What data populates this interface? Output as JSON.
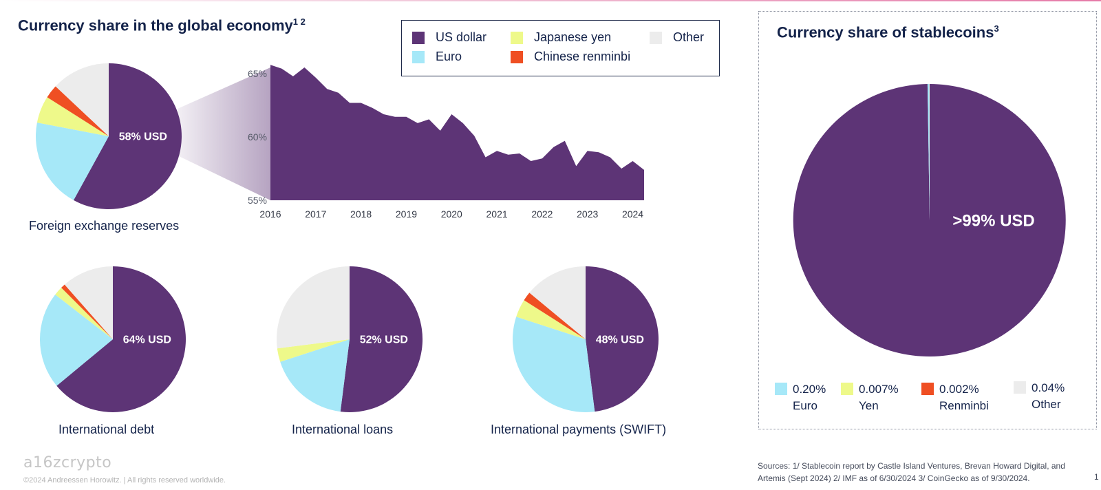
{
  "colors": {
    "usd": "#5d3476",
    "euro": "#a6e8f8",
    "yen": "#eef98a",
    "renminbi": "#ef4f23",
    "other": "#ececec"
  },
  "header": {
    "title": "Currency share in the global economy",
    "title_sup": "1 2"
  },
  "legend": {
    "items": [
      {
        "label": "US dollar",
        "color": "#5d3476"
      },
      {
        "label": "Japanese yen",
        "color": "#eef98a"
      },
      {
        "label": "Other",
        "color": "#ececec"
      },
      {
        "label": "Euro",
        "color": "#a6e8f8"
      },
      {
        "label": "Chinese renminbi",
        "color": "#ef4f23"
      }
    ]
  },
  "chart_data": [
    {
      "type": "pie",
      "title": "Foreign exchange reserves",
      "center_label": "58% USD",
      "slices": [
        {
          "name": "US dollar",
          "value": 58
        },
        {
          "name": "Euro",
          "value": 20
        },
        {
          "name": "Japanese yen",
          "value": 6
        },
        {
          "name": "Chinese renminbi",
          "value": 3
        },
        {
          "name": "Other",
          "value": 13
        }
      ]
    },
    {
      "type": "area",
      "ylim": [
        55,
        65.5
      ],
      "yticks": [
        "55%",
        "60%",
        "65%"
      ],
      "ytick_values": [
        55,
        60,
        65
      ],
      "xticks": [
        "2016",
        "2017",
        "2018",
        "2019",
        "2020",
        "2021",
        "2022",
        "2023",
        "2024"
      ],
      "xtick_values": [
        2016,
        2017,
        2018,
        2019,
        2020,
        2021,
        2022,
        2023,
        2024
      ],
      "x": [
        2016.0,
        2016.25,
        2016.5,
        2016.75,
        2017.0,
        2017.25,
        2017.5,
        2017.75,
        2018.0,
        2018.25,
        2018.5,
        2018.75,
        2019.0,
        2019.25,
        2019.5,
        2019.75,
        2020.0,
        2020.25,
        2020.5,
        2020.75,
        2021.0,
        2021.25,
        2021.5,
        2021.75,
        2022.0,
        2022.25,
        2022.5,
        2022.75,
        2023.0,
        2023.25,
        2023.5,
        2023.75,
        2024.0,
        2024.25
      ],
      "y": [
        65.7,
        65.4,
        64.8,
        65.5,
        64.7,
        63.8,
        63.5,
        62.7,
        62.7,
        62.3,
        61.8,
        61.6,
        61.6,
        61.1,
        61.4,
        60.5,
        61.8,
        61.1,
        60.1,
        58.4,
        58.9,
        58.6,
        58.7,
        58.1,
        58.3,
        59.2,
        59.7,
        57.7,
        58.9,
        58.8,
        58.4,
        57.5,
        58.1,
        57.4
      ]
    },
    {
      "type": "pie",
      "title": "International debt",
      "center_label": "64% USD",
      "slices": [
        {
          "name": "US dollar",
          "value": 64
        },
        {
          "name": "Euro",
          "value": 21.5
        },
        {
          "name": "Japanese yen",
          "value": 2
        },
        {
          "name": "Chinese renminbi",
          "value": 1
        },
        {
          "name": "Other",
          "value": 11.5
        }
      ]
    },
    {
      "type": "pie",
      "title": "International loans",
      "center_label": "52% USD",
      "slices": [
        {
          "name": "US dollar",
          "value": 52
        },
        {
          "name": "Euro",
          "value": 18
        },
        {
          "name": "Japanese yen",
          "value": 3
        },
        {
          "name": "Chinese renminbi",
          "value": 0
        },
        {
          "name": "Other",
          "value": 27
        }
      ]
    },
    {
      "type": "pie",
      "title": "International payments (SWIFT)",
      "center_label": "48% USD",
      "slices": [
        {
          "name": "US dollar",
          "value": 48
        },
        {
          "name": "Euro",
          "value": 32
        },
        {
          "name": "Japanese yen",
          "value": 4
        },
        {
          "name": "Chinese renminbi",
          "value": 2
        },
        {
          "name": "Other",
          "value": 14
        }
      ]
    },
    {
      "type": "pie",
      "title": "Currency share of stablecoins",
      "center_label": ">99% USD",
      "slices": [
        {
          "name": "US dollar",
          "value": 99.751
        },
        {
          "name": "Euro",
          "value": 0.2
        },
        {
          "name": "Japanese yen",
          "value": 0.007
        },
        {
          "name": "Chinese renminbi",
          "value": 0.002
        },
        {
          "name": "Other",
          "value": 0.04
        }
      ]
    }
  ],
  "stablecoin": {
    "title": "Currency share of stablecoins",
    "title_sup": "3",
    "legend": [
      {
        "pct": "0.20%",
        "name": "Euro",
        "color": "#a6e8f8"
      },
      {
        "pct": "0.007%",
        "name": "Yen",
        "color": "#eef98a"
      },
      {
        "pct": "0.002%",
        "name": "Renminbi",
        "color": "#ef4f23"
      },
      {
        "pct": "0.04%",
        "name": "Other",
        "color": "#ececec"
      }
    ]
  },
  "footer": {
    "logo": "a16zcrypto",
    "copyright": "©2024 Andreessen Horowitz.  |  All rights reserved worldwide.",
    "sources": "Sources: 1/ Stablecoin report by Castle Island Ventures, Brevan Howard Digital, and Artemis (Sept 2024) 2/ IMF as of 6/30/2024 3/ CoinGecko as of 9/30/2024.",
    "page_number": "1"
  }
}
